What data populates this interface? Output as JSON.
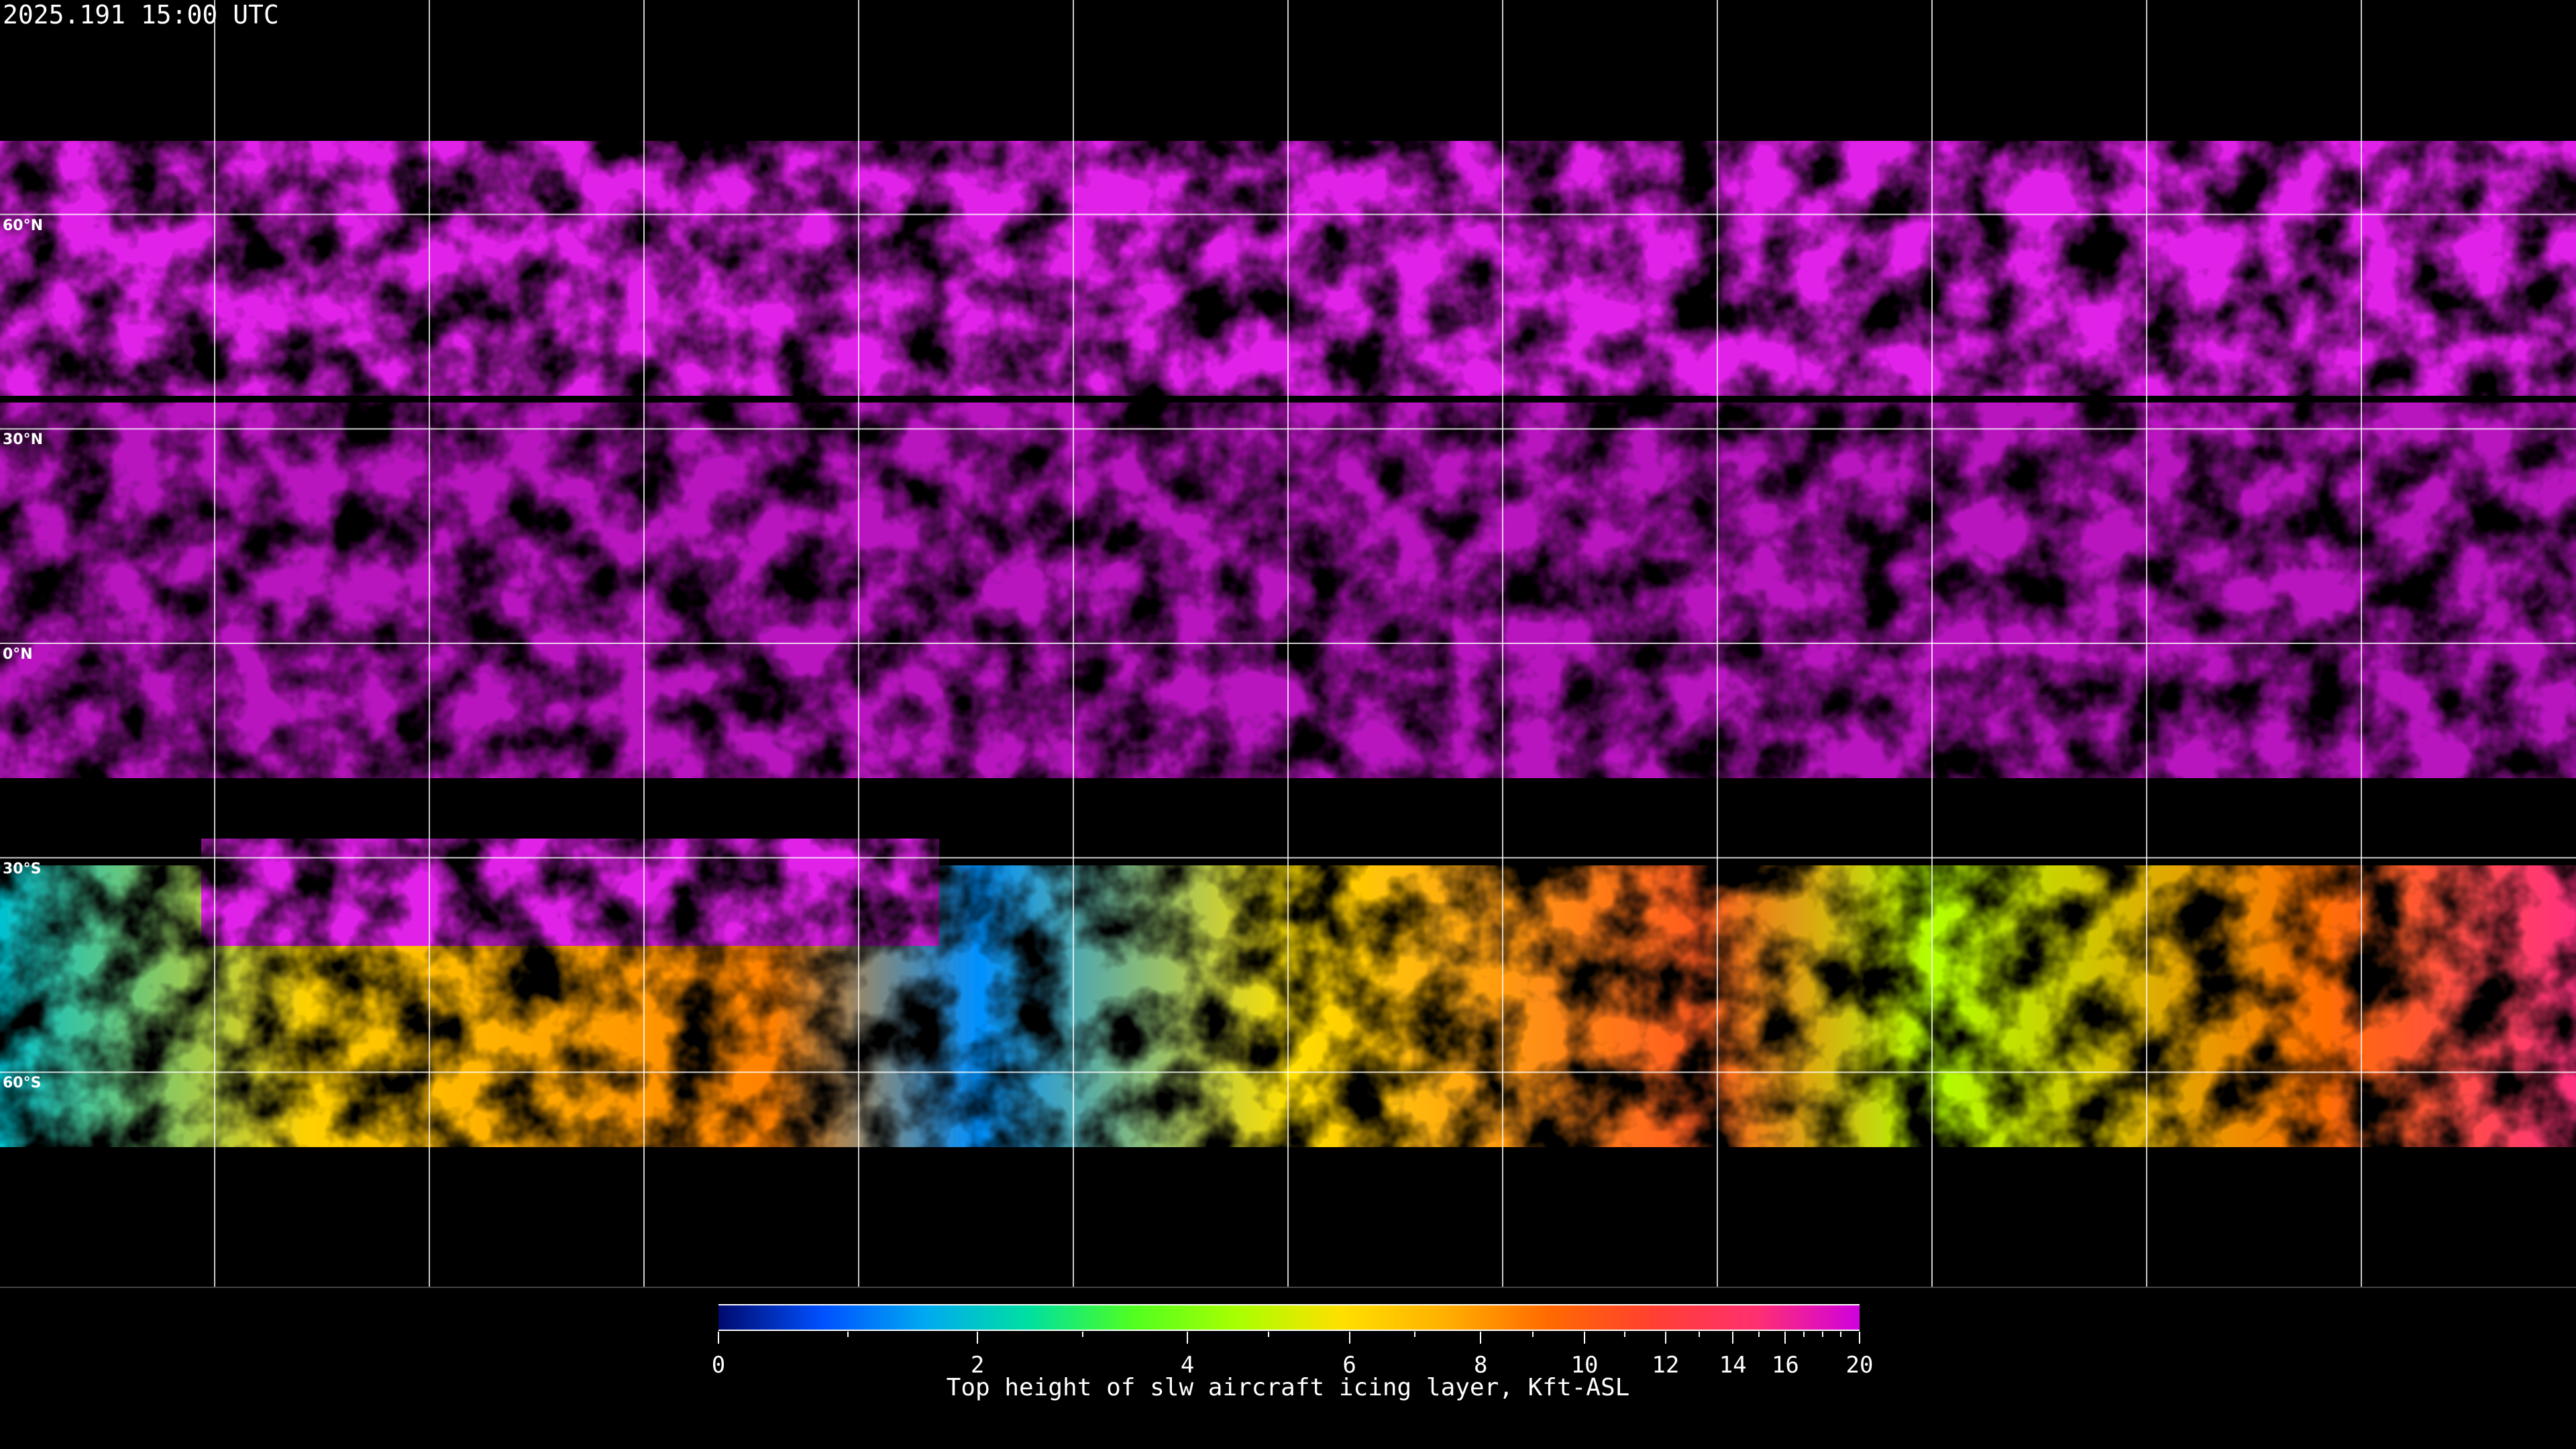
{
  "header": {
    "timestamp": "2025.191 15:00 UTC"
  },
  "map": {
    "projection": "equirectangular",
    "grid_spacing_deg": 30,
    "lat_labels": [
      "60°N",
      "30°N",
      "0°N",
      "30°S",
      "60°S"
    ],
    "background_color": "#000000",
    "gridline_color": "#ffffff",
    "coastline_color": "#ffffff"
  },
  "colorbar": {
    "title": "Top height of slw aircraft icing layer, Kft-ASL",
    "range": [
      0,
      20
    ],
    "major_ticks": [
      0,
      2,
      4,
      6,
      8,
      10,
      12,
      14,
      16,
      20
    ],
    "major_tick_labels": [
      "0",
      "2",
      "4",
      "6",
      "8",
      "10",
      "12",
      "14",
      "16",
      "20"
    ],
    "minor_ticks": [
      1,
      3,
      5,
      7,
      9,
      11,
      13,
      15,
      17,
      18,
      19
    ],
    "colors": [
      "#000a6e",
      "#0050ff",
      "#00aaf0",
      "#00e0a0",
      "#50ff20",
      "#a8ff00",
      "#ffe000",
      "#ffb000",
      "#ff6a00",
      "#ff4030",
      "#ff3070",
      "#d000e0"
    ]
  }
}
